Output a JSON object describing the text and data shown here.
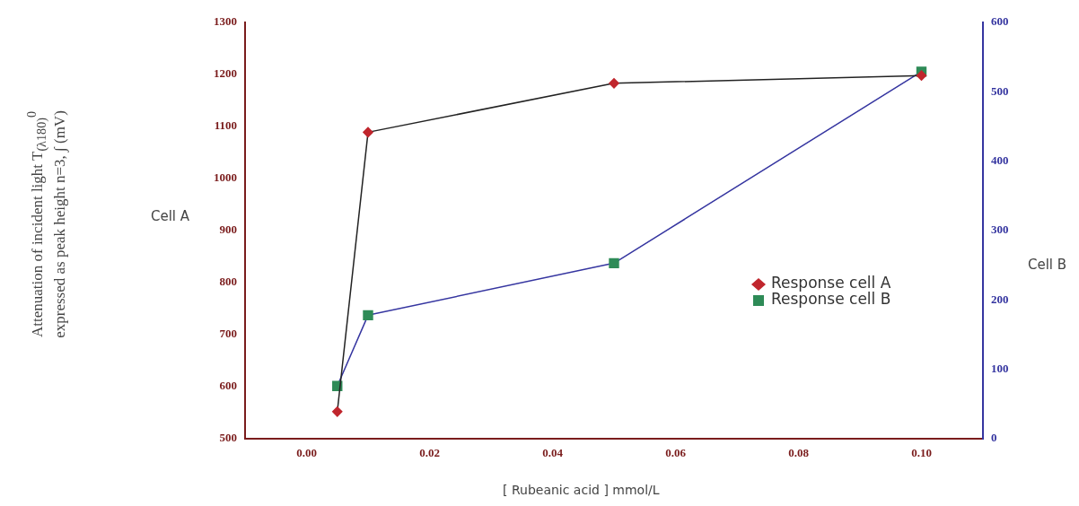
{
  "chart_data": {
    "type": "line",
    "xlabel": "[ Rubeanic acid ] mmol/L",
    "ylabel": "Cell A",
    "y2label": "Cell B",
    "annotations": [
      "Attenuation of incident light T$_{(λ180)}$$^{0}$",
      "expressed as peak height n=3, ∫ (mV)"
    ],
    "x": [
      0.005,
      0.01,
      0.05,
      0.1
    ],
    "series": [
      {
        "name": "Response cell A",
        "color": "#c0262d",
        "marker": "diamond",
        "values": [
          552,
          1089,
          1183,
          1198
        ]
      },
      {
        "name": "Response cell B",
        "color": "#2e8b57",
        "marker": "square",
        "axis": "y2",
        "values": [
          76,
          178,
          253,
          529
        ]
      }
    ],
    "xlim": [
      -0.01,
      0.11
    ],
    "xticks": [
      {
        "value": 0,
        "label": "0.00"
      },
      {
        "value": 0.02,
        "label": "0.02"
      },
      {
        "value": 0.04,
        "label": "0.04"
      },
      {
        "value": 0.06,
        "label": "0.06"
      },
      {
        "value": 0.08,
        "label": "0.08"
      },
      {
        "value": 0.1,
        "label": "0.10"
      }
    ],
    "ylim": [
      500,
      1300
    ],
    "yticks": [
      500,
      600,
      700,
      800,
      900,
      1000,
      1100,
      1200,
      1300
    ],
    "y2lim": [
      0,
      600
    ],
    "y2ticks": [
      0,
      100,
      200,
      300,
      400,
      500,
      600
    ],
    "legend": "right",
    "grid": false,
    "line_style": "solid"
  }
}
